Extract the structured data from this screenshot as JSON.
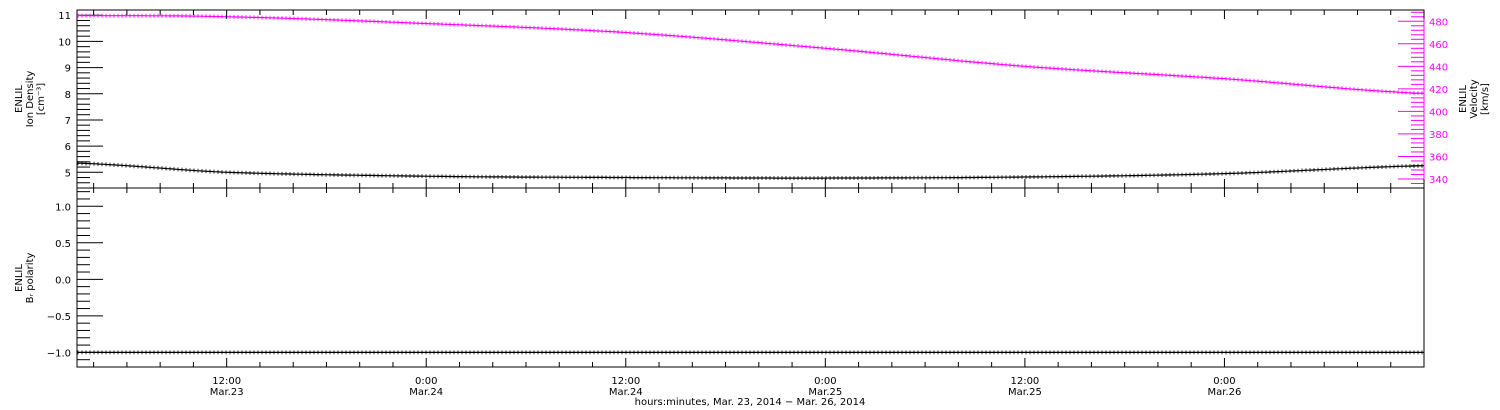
{
  "chart_data": [
    {
      "type": "line",
      "panel": "top",
      "x_range": [
        "2014-03-23 03:00",
        "2014-03-26 12:00"
      ],
      "left_axis": {
        "label_lines": [
          "ENLIL",
          "Ion Density",
          "[cm⁻³]"
        ],
        "ylim": [
          4.4,
          11.2
        ],
        "ticks": [
          5,
          6,
          7,
          8,
          9,
          10,
          11
        ],
        "tick_labels": [
          "5",
          "6",
          "7",
          "8",
          "9",
          "10",
          "11"
        ],
        "color": "#000000"
      },
      "right_axis": {
        "label_lines": [
          "ENLIL",
          "Velocity",
          "[km/s]"
        ],
        "ylim": [
          332,
          490
        ],
        "ticks": [
          340,
          360,
          380,
          400,
          420,
          440,
          460,
          480
        ],
        "tick_labels": [
          "340",
          "360",
          "380",
          "400",
          "420",
          "440",
          "460",
          "480"
        ],
        "color": "#ff00ff"
      },
      "series": [
        {
          "axis": "left",
          "color": "#000000",
          "x": [
            "2014-03-23 03:00",
            "2014-03-23 12:00",
            "2014-03-24 00:00",
            "2014-03-24 12:00",
            "2014-03-25 00:00",
            "2014-03-25 12:00",
            "2014-03-26 00:00",
            "2014-03-26 12:00"
          ],
          "values": [
            5.35,
            5.0,
            4.85,
            4.8,
            4.78,
            4.82,
            4.95,
            5.25
          ]
        },
        {
          "axis": "right",
          "color": "#ff00ff",
          "x": [
            "2014-03-23 03:00",
            "2014-03-23 12:00",
            "2014-03-24 00:00",
            "2014-03-24 12:00",
            "2014-03-25 00:00",
            "2014-03-25 12:00",
            "2014-03-26 00:00",
            "2014-03-26 12:00"
          ],
          "values": [
            485,
            484,
            478,
            470,
            456,
            440,
            429,
            416
          ]
        }
      ]
    },
    {
      "type": "line",
      "panel": "bottom",
      "x_range": [
        "2014-03-23 03:00",
        "2014-03-26 12:00"
      ],
      "left_axis": {
        "label_lines": [
          "ENLIL",
          "Bᵣ polarity"
        ],
        "ylim": [
          -1.2,
          1.25
        ],
        "ticks": [
          -1.0,
          -0.5,
          0.0,
          0.5,
          1.0
        ],
        "tick_labels": [
          "−1.0",
          "−0.5",
          "0.0",
          "0.5",
          "1.0"
        ],
        "color": "#000000"
      },
      "series": [
        {
          "axis": "left",
          "color": "#000000",
          "x": [
            "2014-03-23 03:00",
            "2014-03-26 12:00"
          ],
          "values": [
            -1.0,
            -1.0
          ]
        }
      ]
    }
  ],
  "x_axis": {
    "ticks": [
      "2014-03-23 12:00",
      "2014-03-24 00:00",
      "2014-03-24 12:00",
      "2014-03-25 00:00",
      "2014-03-25 12:00",
      "2014-03-26 00:00"
    ],
    "tick_labels": [
      [
        "12:00",
        "Mar.23"
      ],
      [
        "0:00",
        "Mar.24"
      ],
      [
        "12:00",
        "Mar.24"
      ],
      [
        "0:00",
        "Mar.25"
      ],
      [
        "12:00",
        "Mar.25"
      ],
      [
        "0:00",
        "Mar.26"
      ]
    ],
    "label": "hours:minutes, Mar. 23, 2014 − Mar. 26, 2014"
  }
}
